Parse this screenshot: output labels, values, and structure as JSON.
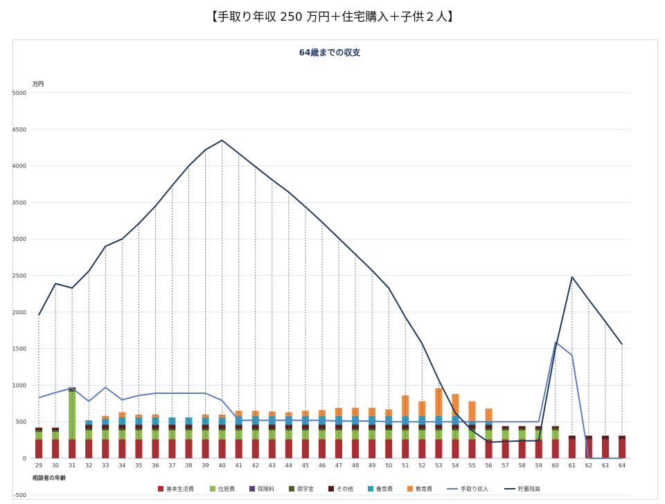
{
  "page": {
    "title": "【手取り年収 250 万円＋住宅購入＋子供２人】"
  },
  "chart_data": {
    "type": "bar",
    "title": "64歳までの収支",
    "ylabel": "万円",
    "xlabel": "相談者の年齢",
    "ylim": [
      -500,
      5000
    ],
    "yticks": [
      -500,
      0,
      500,
      1000,
      1500,
      2000,
      2500,
      3000,
      3500,
      4000,
      4500,
      5000
    ],
    "grid": true,
    "legend_position": "bottom",
    "categories": [
      "29",
      "30",
      "31",
      "32",
      "33",
      "34",
      "35",
      "36",
      "37",
      "38",
      "39",
      "40",
      "41",
      "42",
      "43",
      "44",
      "45",
      "46",
      "47",
      "48",
      "49",
      "50",
      "51",
      "52",
      "53",
      "54",
      "55",
      "56",
      "57",
      "58",
      "59",
      "60",
      "61",
      "62",
      "63",
      "64"
    ],
    "bar_series": [
      {
        "name": "基本生活費",
        "color": "#b02a30",
        "values": [
          260,
          260,
          260,
          260,
          260,
          260,
          260,
          260,
          260,
          260,
          260,
          260,
          260,
          260,
          260,
          260,
          260,
          260,
          260,
          260,
          260,
          260,
          260,
          260,
          260,
          260,
          260,
          260,
          260,
          260,
          260,
          260,
          260,
          260,
          260,
          260
        ]
      },
      {
        "name": "住居費",
        "color": "#8cbd4a",
        "values": [
          100,
          100,
          650,
          120,
          120,
          120,
          120,
          120,
          120,
          120,
          120,
          120,
          120,
          120,
          120,
          120,
          120,
          120,
          120,
          120,
          120,
          120,
          120,
          120,
          120,
          120,
          120,
          120,
          120,
          120,
          120,
          120,
          0,
          0,
          0,
          0
        ]
      },
      {
        "name": "保険料",
        "color": "#5b3a8c",
        "values": [
          0,
          0,
          0,
          0,
          0,
          0,
          0,
          0,
          0,
          0,
          0,
          0,
          0,
          0,
          0,
          0,
          0,
          0,
          0,
          0,
          0,
          0,
          0,
          0,
          0,
          0,
          0,
          0,
          0,
          0,
          0,
          0,
          0,
          0,
          0,
          0
        ]
      },
      {
        "name": "奨学金",
        "color": "#4f6228",
        "values": [
          20,
          20,
          20,
          20,
          20,
          20,
          20,
          20,
          20,
          20,
          20,
          20,
          20,
          20,
          20,
          20,
          20,
          20,
          20,
          20,
          20,
          20,
          20,
          20,
          20,
          20,
          20,
          20,
          20,
          20,
          20,
          20,
          0,
          0,
          0,
          0
        ]
      },
      {
        "name": "その他",
        "color": "#5a1a1a",
        "values": [
          40,
          40,
          40,
          60,
          60,
          60,
          60,
          60,
          60,
          60,
          60,
          60,
          60,
          60,
          60,
          60,
          60,
          60,
          60,
          60,
          60,
          60,
          60,
          60,
          60,
          60,
          60,
          60,
          40,
          40,
          40,
          40,
          50,
          50,
          50,
          50
        ]
      },
      {
        "name": "養育費",
        "color": "#2e9fc4",
        "values": [
          0,
          0,
          0,
          60,
          80,
          100,
          100,
          100,
          100,
          100,
          100,
          100,
          120,
          120,
          120,
          120,
          120,
          120,
          120,
          120,
          120,
          120,
          120,
          120,
          120,
          120,
          40,
          40,
          0,
          0,
          0,
          0,
          0,
          0,
          0,
          0
        ]
      },
      {
        "name": "教育費",
        "color": "#ef8a3c",
        "values": [
          0,
          0,
          0,
          0,
          40,
          70,
          40,
          40,
          0,
          0,
          40,
          40,
          70,
          70,
          60,
          50,
          70,
          80,
          110,
          110,
          110,
          90,
          280,
          200,
          380,
          300,
          280,
          180,
          0,
          0,
          0,
          0,
          0,
          0,
          0,
          0
        ]
      }
    ],
    "line_series": [
      {
        "name": "手取り収入",
        "color": "#5b7fc4",
        "values": [
          830,
          900,
          960,
          780,
          970,
          800,
          860,
          890,
          890,
          890,
          890,
          790,
          520,
          520,
          520,
          520,
          520,
          520,
          510,
          510,
          510,
          500,
          500,
          500,
          500,
          500,
          500,
          500,
          500,
          500,
          500,
          1590,
          1410,
          0,
          0,
          0
        ]
      },
      {
        "name": "貯蓄残高",
        "color": "#1f3a5c",
        "values": [
          1960,
          2390,
          2330,
          2560,
          2900,
          3000,
          3210,
          3450,
          3730,
          4000,
          4220,
          4350,
          4170,
          3990,
          3810,
          3640,
          3440,
          3230,
          3010,
          2790,
          2570,
          2330,
          1930,
          1570,
          1070,
          620,
          380,
          220,
          230,
          240,
          240,
          1500,
          2480,
          2170,
          1870,
          1560
        ]
      }
    ]
  }
}
